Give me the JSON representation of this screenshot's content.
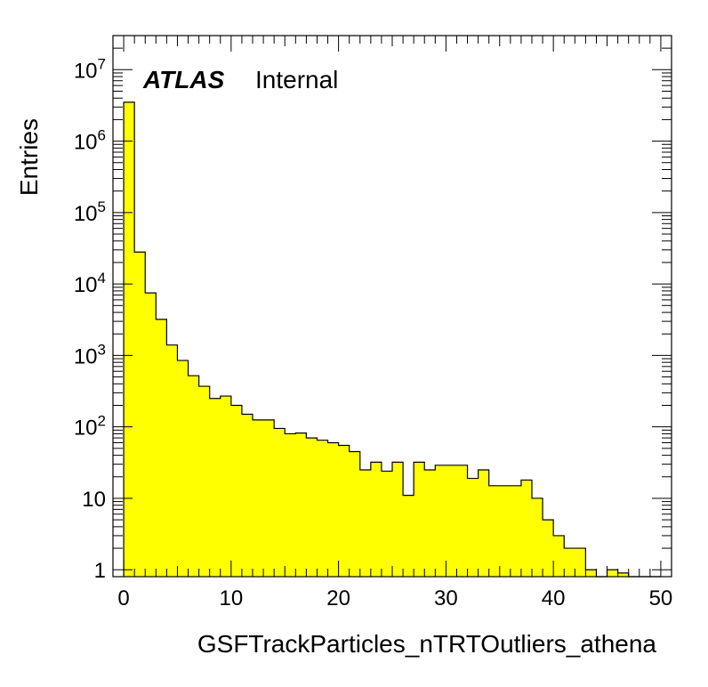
{
  "chart_data": {
    "type": "bar",
    "label": {
      "experiment": "ATLAS",
      "status": "Internal"
    },
    "xlabel": "GSFTrackParticles_nTRTOutliers_athena",
    "ylabel": "Entries",
    "xlim": [
      -1,
      51
    ],
    "ylim": [
      0.8,
      30000000
    ],
    "yscale": "log",
    "fill_color": "#ffff00",
    "line_color": "#000000",
    "x_ticks": [
      "0",
      "10",
      "20",
      "30",
      "40",
      "50"
    ],
    "y_ticks": [
      {
        "base": "1",
        "exp": ""
      },
      {
        "base": "10",
        "exp": ""
      },
      {
        "base": "10",
        "exp": "2"
      },
      {
        "base": "10",
        "exp": "3"
      },
      {
        "base": "10",
        "exp": "4"
      },
      {
        "base": "10",
        "exp": "5"
      },
      {
        "base": "10",
        "exp": "6"
      },
      {
        "base": "10",
        "exp": "7"
      }
    ],
    "bin_edges": [
      0,
      1,
      2,
      3,
      4,
      5,
      6,
      7,
      8,
      9,
      10,
      11,
      12,
      13,
      14,
      15,
      16,
      17,
      18,
      19,
      20,
      21,
      22,
      23,
      24,
      25,
      26,
      27,
      28,
      29,
      30,
      31,
      32,
      33,
      34,
      35,
      36,
      37,
      38,
      39,
      40,
      41,
      42,
      43,
      44,
      45,
      46,
      47,
      48,
      49,
      50
    ],
    "values": [
      3500000,
      28000,
      7500,
      3200,
      1400,
      850,
      520,
      370,
      250,
      270,
      200,
      150,
      125,
      125,
      95,
      80,
      82,
      70,
      65,
      60,
      55,
      45,
      25,
      32,
      24,
      32,
      11,
      32,
      25,
      29,
      29,
      29,
      19,
      25,
      15,
      15,
      15,
      18,
      10,
      5,
      3,
      2,
      2,
      1,
      0,
      1,
      0.9,
      0,
      0,
      0
    ]
  }
}
